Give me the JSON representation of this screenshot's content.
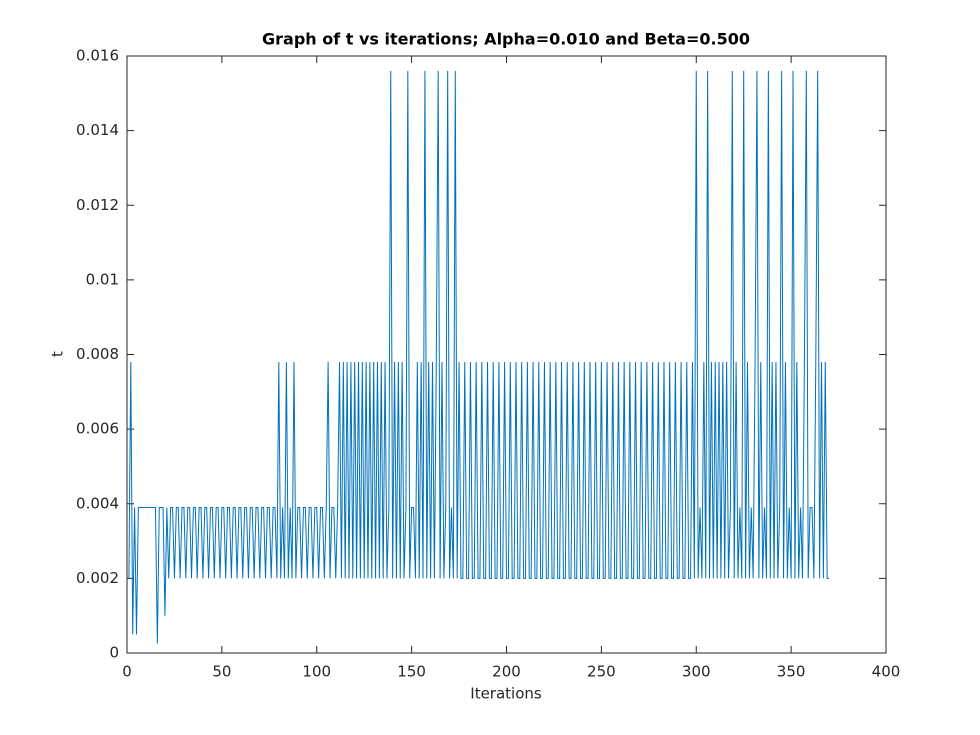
{
  "chart_data": {
    "type": "line",
    "title": "Graph of t vs iterations; Alpha=0.010 and Beta=0.500",
    "x_label": "Iterations",
    "y_label": "t",
    "color": "#0072bd",
    "xlim": [
      0,
      400
    ],
    "xticks": [
      0,
      50,
      100,
      150,
      200,
      250,
      300,
      350,
      400
    ],
    "ylim": [
      0,
      0.016
    ],
    "yticks": [
      0,
      0.002,
      0.004,
      0.006,
      0.008,
      0.01,
      0.012,
      0.014,
      0.016
    ],
    "x": [
      1,
      2,
      3,
      4,
      5,
      6,
      7,
      8,
      9,
      10,
      11,
      12,
      13,
      14,
      15,
      16,
      17,
      18,
      19,
      20,
      21,
      22,
      23,
      24,
      25,
      26,
      27,
      28,
      29,
      30,
      31,
      32,
      33,
      34,
      35,
      36,
      37,
      38,
      39,
      40,
      41,
      42,
      43,
      44,
      45,
      46,
      47,
      48,
      49,
      50,
      51,
      52,
      53,
      54,
      55,
      56,
      57,
      58,
      59,
      60,
      61,
      62,
      63,
      64,
      65,
      66,
      67,
      68,
      69,
      70,
      71,
      72,
      73,
      74,
      75,
      76,
      77,
      78,
      79,
      80,
      81,
      82,
      83,
      84,
      85,
      86,
      87,
      88,
      89,
      90,
      91,
      92,
      93,
      94,
      95,
      96,
      97,
      98,
      99,
      100,
      101,
      102,
      103,
      104,
      105,
      106,
      107,
      108,
      109,
      110,
      111,
      112,
      113,
      114,
      115,
      116,
      117,
      118,
      119,
      120,
      121,
      122,
      123,
      124,
      125,
      126,
      127,
      128,
      129,
      130,
      131,
      132,
      133,
      134,
      135,
      136,
      137,
      138,
      139,
      140,
      141,
      142,
      143,
      144,
      145,
      146,
      147,
      148,
      149,
      150,
      151,
      152,
      153,
      154,
      155,
      156,
      157,
      158,
      159,
      160,
      161,
      162,
      163,
      164,
      165,
      166,
      167,
      168,
      169,
      170,
      171,
      172,
      173,
      174,
      175,
      176,
      177,
      178,
      179,
      180,
      181,
      182,
      183,
      184,
      185,
      186,
      187,
      188,
      189,
      190,
      191,
      192,
      193,
      194,
      195,
      196,
      197,
      198,
      199,
      200,
      201,
      202,
      203,
      204,
      205,
      206,
      207,
      208,
      209,
      210,
      211,
      212,
      213,
      214,
      215,
      216,
      217,
      218,
      219,
      220,
      221,
      222,
      223,
      224,
      225,
      226,
      227,
      228,
      229,
      230,
      231,
      232,
      233,
      234,
      235,
      236,
      237,
      238,
      239,
      240,
      241,
      242,
      243,
      244,
      245,
      246,
      247,
      248,
      249,
      250,
      251,
      252,
      253,
      254,
      255,
      256,
      257,
      258,
      259,
      260,
      261,
      262,
      263,
      264,
      265,
      266,
      267,
      268,
      269,
      270,
      271,
      272,
      273,
      274,
      275,
      276,
      277,
      278,
      279,
      280,
      281,
      282,
      283,
      284,
      285,
      286,
      287,
      288,
      289,
      290,
      291,
      292,
      293,
      294,
      295,
      296,
      297,
      298,
      299,
      300,
      301,
      302,
      303,
      304,
      305,
      306,
      307,
      308,
      309,
      310,
      311,
      312,
      313,
      314,
      315,
      316,
      317,
      318,
      319,
      320,
      321,
      322,
      323,
      324,
      325,
      326,
      327,
      328,
      329,
      330,
      331,
      332,
      333,
      334,
      335,
      336,
      337,
      338,
      339,
      340,
      341,
      342,
      343,
      344,
      345,
      346,
      347,
      348,
      349,
      350,
      351,
      352,
      353,
      354,
      355,
      356,
      357,
      358,
      359,
      360,
      361,
      362,
      363,
      364,
      365,
      366,
      367,
      368,
      369,
      370
    ],
    "values": [
      0.002,
      0.0078,
      0.0005,
      0.0039,
      0.0005,
      0.0039,
      0.0039,
      0.0039,
      0.0039,
      0.0039,
      0.0039,
      0.0039,
      0.0039,
      0.0039,
      0.0039,
      0.00025,
      0.0039,
      0.0039,
      0.0039,
      0.001,
      0.0039,
      0.002,
      0.0039,
      0.0039,
      0.002,
      0.0039,
      0.0039,
      0.002,
      0.0039,
      0.0039,
      0.002,
      0.0039,
      0.0039,
      0.002,
      0.0039,
      0.0039,
      0.002,
      0.0039,
      0.0039,
      0.002,
      0.0039,
      0.0039,
      0.002,
      0.0039,
      0.0039,
      0.002,
      0.0039,
      0.0039,
      0.002,
      0.0039,
      0.0039,
      0.002,
      0.0039,
      0.0039,
      0.002,
      0.0039,
      0.0039,
      0.002,
      0.0039,
      0.0039,
      0.002,
      0.0039,
      0.0039,
      0.002,
      0.0039,
      0.0039,
      0.002,
      0.0039,
      0.0039,
      0.002,
      0.0039,
      0.0039,
      0.002,
      0.0039,
      0.0039,
      0.002,
      0.0039,
      0.0039,
      0.002,
      0.0078,
      0.002,
      0.0039,
      0.002,
      0.0078,
      0.002,
      0.0039,
      0.002,
      0.0078,
      0.002,
      0.0039,
      0.0039,
      0.002,
      0.0039,
      0.0039,
      0.002,
      0.0039,
      0.0039,
      0.002,
      0.0039,
      0.0039,
      0.002,
      0.0039,
      0.0039,
      0.002,
      0.0039,
      0.0078,
      0.002,
      0.0039,
      0.0039,
      0.002,
      0.0039,
      0.0078,
      0.002,
      0.0078,
      0.002,
      0.0078,
      0.002,
      0.0078,
      0.002,
      0.0078,
      0.002,
      0.0078,
      0.002,
      0.0078,
      0.002,
      0.0078,
      0.002,
      0.0078,
      0.002,
      0.0078,
      0.002,
      0.0078,
      0.002,
      0.0078,
      0.002,
      0.0078,
      0.002,
      0.0039,
      0.0156,
      0.002,
      0.0078,
      0.002,
      0.0078,
      0.002,
      0.0078,
      0.002,
      0.0039,
      0.0156,
      0.002,
      0.0039,
      0.0039,
      0.002,
      0.0078,
      0.002,
      0.0078,
      0.002,
      0.0156,
      0.002,
      0.0078,
      0.002,
      0.0078,
      0.002,
      0.0078,
      0.0156,
      0.002,
      0.0078,
      0.002,
      0.0039,
      0.0156,
      0.002,
      0.0039,
      0.002,
      0.0156,
      0.002,
      0.0078,
      0.002,
      0.002,
      0.0078,
      0.002,
      0.002,
      0.0078,
      0.002,
      0.002,
      0.0078,
      0.002,
      0.002,
      0.0078,
      0.002,
      0.002,
      0.0078,
      0.002,
      0.002,
      0.0078,
      0.002,
      0.002,
      0.0078,
      0.002,
      0.002,
      0.0078,
      0.002,
      0.002,
      0.0078,
      0.002,
      0.002,
      0.0078,
      0.002,
      0.002,
      0.0078,
      0.002,
      0.002,
      0.0078,
      0.002,
      0.002,
      0.0078,
      0.002,
      0.002,
      0.0078,
      0.002,
      0.002,
      0.0078,
      0.002,
      0.002,
      0.0078,
      0.002,
      0.002,
      0.0078,
      0.002,
      0.002,
      0.0078,
      0.002,
      0.002,
      0.0078,
      0.002,
      0.002,
      0.0078,
      0.002,
      0.002,
      0.0078,
      0.002,
      0.002,
      0.0078,
      0.002,
      0.002,
      0.0078,
      0.002,
      0.002,
      0.0078,
      0.002,
      0.002,
      0.0078,
      0.002,
      0.002,
      0.0078,
      0.002,
      0.002,
      0.0078,
      0.002,
      0.002,
      0.0078,
      0.002,
      0.002,
      0.0078,
      0.002,
      0.002,
      0.0078,
      0.002,
      0.002,
      0.0078,
      0.002,
      0.002,
      0.0078,
      0.002,
      0.002,
      0.0078,
      0.002,
      0.002,
      0.0078,
      0.002,
      0.002,
      0.0078,
      0.002,
      0.002,
      0.0078,
      0.002,
      0.002,
      0.0078,
      0.002,
      0.002,
      0.0078,
      0.002,
      0.002,
      0.0078,
      0.002,
      0.002,
      0.0078,
      0.002,
      0.002,
      0.0078,
      0.002,
      0.0156,
      0.002,
      0.0039,
      0.002,
      0.0078,
      0.002,
      0.0156,
      0.002,
      0.0078,
      0.002,
      0.0078,
      0.002,
      0.0078,
      0.002,
      0.0078,
      0.002,
      0.0078,
      0.002,
      0.0039,
      0.0156,
      0.002,
      0.0078,
      0.002,
      0.0039,
      0.002,
      0.0156,
      0.002,
      0.0078,
      0.002,
      0.0039,
      0.002,
      0.0078,
      0.0156,
      0.002,
      0.0078,
      0.002,
      0.0039,
      0.002,
      0.0156,
      0.002,
      0.0078,
      0.002,
      0.0078,
      0.002,
      0.0039,
      0.0156,
      0.002,
      0.0078,
      0.002,
      0.0039,
      0.002,
      0.0156,
      0.002,
      0.0078,
      0.002,
      0.0039,
      0.002,
      0.0078,
      0.0156,
      0.002,
      0.0039,
      0.0039,
      0.002,
      0.0078,
      0.0156,
      0.002,
      0.0078,
      0.002,
      0.0078,
      0.002,
      0.002
    ]
  }
}
